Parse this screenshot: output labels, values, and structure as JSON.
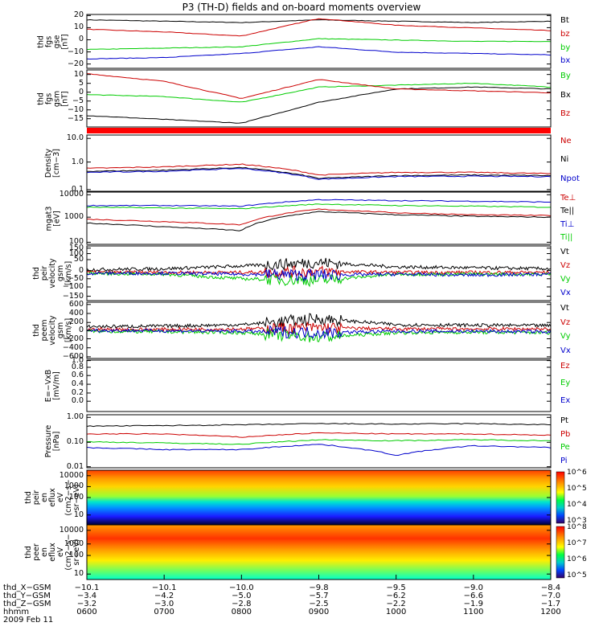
{
  "title": "P3 (TH-D) fields and on-board moments overview",
  "panels": [
    {
      "id": "fgs_gse",
      "ylabel": [
        "thd",
        "fgs",
        "gse",
        "[nT]"
      ],
      "ticks": [
        {
          "v": "20",
          "f": 0.02
        },
        {
          "v": "10",
          "f": 0.245
        },
        {
          "v": "0",
          "f": 0.47
        },
        {
          "v": "−10",
          "f": 0.695
        },
        {
          "v": "−20",
          "f": 0.92
        }
      ],
      "legend": [
        {
          "t": "Bt",
          "c": "#000000"
        },
        {
          "t": "bz",
          "c": "#cc0000"
        },
        {
          "t": "by",
          "c": "#00cc00"
        },
        {
          "t": "bx",
          "c": "#0000cc"
        }
      ]
    },
    {
      "id": "fgs_gsm",
      "ylabel": [
        "thd",
        "fgs",
        "gsm",
        "[nT]"
      ],
      "ticks": [
        {
          "v": "10",
          "f": 0.08
        },
        {
          "v": "5",
          "f": 0.235
        },
        {
          "v": "0",
          "f": 0.39
        },
        {
          "v": "−5",
          "f": 0.545
        },
        {
          "v": "−10",
          "f": 0.7
        },
        {
          "v": "−15",
          "f": 0.855
        }
      ],
      "legend": [
        {
          "t": "By",
          "c": "#00cc00"
        },
        {
          "t": "Bx",
          "c": "#000000"
        },
        {
          "t": "Bz",
          "c": "#cc0000"
        }
      ]
    },
    {
      "id": "density",
      "ylabel": [
        "Density",
        "[cm−3]"
      ],
      "ticks": [
        {
          "v": "10.0",
          "f": 0.06
        },
        {
          "v": "1.0",
          "f": 0.48
        },
        {
          "v": "0.1",
          "f": 0.97
        }
      ],
      "legend": [
        {
          "t": "Ne",
          "c": "#cc0000"
        },
        {
          "t": "Ni",
          "c": "#000000"
        },
        {
          "t": "Npot",
          "c": "#0000cc"
        }
      ]
    },
    {
      "id": "temperature",
      "ylabel": [
        "mgat3",
        "[eV]"
      ],
      "ticks": [
        {
          "v": "10000",
          "f": 0.05
        },
        {
          "v": "1000",
          "f": 0.48
        },
        {
          "v": "100",
          "f": 0.96
        }
      ],
      "legend": [
        {
          "t": "Te⊥",
          "c": "#cc0000"
        },
        {
          "t": "Te||",
          "c": "#000000"
        },
        {
          "t": "Ti⊥",
          "c": "#0000cc"
        },
        {
          "t": "Ti||",
          "c": "#00cc00"
        }
      ]
    },
    {
      "id": "peir_vel",
      "ylabel": [
        "thd",
        "peir",
        "velocity",
        "gsm",
        "[km/s]"
      ],
      "ticks": [
        {
          "v": "150",
          "f": 0.04
        },
        {
          "v": "100",
          "f": 0.14
        },
        {
          "v": "50",
          "f": 0.25
        },
        {
          "v": "0",
          "f": 0.45
        },
        {
          "v": "−50",
          "f": 0.6
        },
        {
          "v": "−100",
          "f": 0.75
        },
        {
          "v": "−150",
          "f": 0.92
        }
      ],
      "legend": [
        {
          "t": "Vt",
          "c": "#000000"
        },
        {
          "t": "Vz",
          "c": "#cc0000"
        },
        {
          "t": "Vy",
          "c": "#00cc00"
        },
        {
          "t": "Vx",
          "c": "#0000cc"
        }
      ]
    },
    {
      "id": "peem_vel",
      "ylabel": [
        "thd",
        "peem",
        "velocity",
        "gsm",
        "[km/s]"
      ],
      "ticks": [
        {
          "v": "600",
          "f": 0.04
        },
        {
          "v": "400",
          "f": 0.2
        },
        {
          "v": "200",
          "f": 0.36
        },
        {
          "v": "0",
          "f": 0.5
        },
        {
          "v": "−200",
          "f": 0.65
        },
        {
          "v": "−400",
          "f": 0.81
        },
        {
          "v": "−600",
          "f": 0.97
        }
      ],
      "legend": [
        {
          "t": "Vt",
          "c": "#000000"
        },
        {
          "t": "Vz",
          "c": "#cc0000"
        },
        {
          "t": "Vy",
          "c": "#00cc00"
        },
        {
          "t": "Vx",
          "c": "#0000cc"
        }
      ]
    },
    {
      "id": "efield",
      "ylabel": [
        "E=−VxB",
        "[mV/m]"
      ],
      "ticks": [
        {
          "v": "1.0",
          "f": 0.01
        },
        {
          "v": "0.8",
          "f": 0.14
        },
        {
          "v": "0.6",
          "f": 0.3
        },
        {
          "v": "0.4",
          "f": 0.47
        },
        {
          "v": "0.2",
          "f": 0.64
        },
        {
          "v": "0.0",
          "f": 0.8
        }
      ],
      "legend": [
        {
          "t": "Ez",
          "c": "#cc0000"
        },
        {
          "t": "Ey",
          "c": "#00cc00"
        },
        {
          "t": "Ex",
          "c": "#0000cc"
        }
      ]
    },
    {
      "id": "pressure",
      "ylabel": [
        "Pressure",
        "[nPa]"
      ],
      "ticks": [
        {
          "v": "1.00",
          "f": 0.05
        },
        {
          "v": "0.10",
          "f": 0.52
        },
        {
          "v": "0.01",
          "f": 0.98
        }
      ],
      "legend": [
        {
          "t": "Pt",
          "c": "#000000"
        },
        {
          "t": "Pb",
          "c": "#cc0000"
        },
        {
          "t": "Pe",
          "c": "#00cc00"
        },
        {
          "t": "Pi",
          "c": "#0000cc"
        }
      ]
    },
    {
      "id": "peir_eflux",
      "ylabel": [
        "thd",
        "peir",
        "en",
        "eflux",
        "eV",
        "(cm2−s−",
        "sr−eV)"
      ],
      "ticks": [
        {
          "v": "10000",
          "f": 0.1
        },
        {
          "v": "1000",
          "f": 0.3
        },
        {
          "v": "100",
          "f": 0.5
        },
        {
          "v": "10",
          "f": 0.82
        }
      ],
      "colorbar": [
        "10^6",
        "10^5",
        "10^4",
        "10^3"
      ]
    },
    {
      "id": "peer_eflux",
      "ylabel": [
        "thd",
        "peer",
        "en",
        "eflux",
        "eV",
        "(cm2−s−",
        "sr−eV)"
      ],
      "ticks": [
        {
          "v": "10000",
          "f": 0.1
        },
        {
          "v": "1000",
          "f": 0.35
        },
        {
          "v": "100",
          "f": 0.56
        },
        {
          "v": "10",
          "f": 0.9
        }
      ],
      "colorbar": [
        "10^8",
        "10^7",
        "10^6",
        "10^5"
      ]
    }
  ],
  "xaxis": {
    "rows": [
      {
        "label": "thd_X−GSM",
        "values": [
          "−10.1",
          "−10.1",
          "−10.0",
          "−9.8",
          "−9.5",
          "−9.0",
          "−8.4"
        ]
      },
      {
        "label": "thd_Y−GSM",
        "values": [
          "−3.4",
          "−4.2",
          "−5.0",
          "−5.7",
          "−6.2",
          "−6.6",
          "−7.0"
        ]
      },
      {
        "label": "thd_Z−GSM",
        "values": [
          "−3.2",
          "−3.0",
          "−2.8",
          "−2.5",
          "−2.2",
          "−1.9",
          "−1.7"
        ]
      },
      {
        "label": "hhmm",
        "values": [
          "0600",
          "0700",
          "0800",
          "0900",
          "1000",
          "1100",
          "1200"
        ]
      }
    ],
    "date": "2009 Feb 11"
  },
  "chart_data": {
    "type": "line",
    "title": "P3 (TH-D) fields and on-board moments overview",
    "x_time_hhmm": [
      "0600",
      "0700",
      "0800",
      "0900",
      "1000",
      "1100",
      "1200"
    ],
    "panels": [
      {
        "name": "thd fgs gse [nT]",
        "ylim": [
          -20,
          20
        ],
        "series": [
          {
            "name": "Bt",
            "values": [
              16,
              15,
              14,
              16,
              15,
              14,
              15
            ]
          },
          {
            "name": "bz",
            "values": [
              9,
              7,
              4,
              17,
              12,
              10,
              8
            ]
          },
          {
            "name": "by",
            "values": [
              -6,
              -5,
              -4,
              2,
              1,
              0,
              0
            ]
          },
          {
            "name": "bx",
            "values": [
              -13,
              -12,
              -9,
              -4,
              -8,
              -9,
              -10
            ]
          }
        ]
      },
      {
        "name": "thd fgs gsm [nT]",
        "ylim": [
          -18,
          12
        ],
        "series": [
          {
            "name": "By",
            "values": [
              -1,
              -2,
              -5,
              3,
              4,
              5,
              3
            ]
          },
          {
            "name": "Bx",
            "values": [
              -12,
              -14,
              -16,
              -5,
              2,
              3,
              2
            ]
          },
          {
            "name": "Bz",
            "values": [
              10,
              6,
              -3,
              7,
              2,
              1,
              0
            ]
          }
        ]
      },
      {
        "name": "Density [cm-3]",
        "scale": "log",
        "ylim": [
          0.1,
          12
        ],
        "series": [
          {
            "name": "Ne",
            "values": [
              0.7,
              0.8,
              1.0,
              0.4,
              0.5,
              0.5,
              0.45
            ]
          },
          {
            "name": "Ni",
            "values": [
              0.55,
              0.6,
              0.75,
              0.3,
              0.38,
              0.4,
              0.38
            ]
          },
          {
            "name": "Npot",
            "values": [
              0.5,
              0.55,
              0.7,
              0.28,
              0.35,
              0.36,
              0.35
            ]
          }
        ]
      },
      {
        "name": "mgat3 [eV]",
        "scale": "log",
        "ylim": [
          100,
          12000
        ],
        "series": [
          {
            "name": "Te⊥",
            "values": [
              1000,
              800,
              600,
              2500,
              1800,
              1500,
              1400
            ]
          },
          {
            "name": "Te||",
            "values": [
              700,
              500,
              350,
              2000,
              1500,
              1300,
              1200
            ]
          },
          {
            "name": "Ti⊥",
            "values": [
              3500,
              3500,
              3300,
              6000,
              5500,
              5200,
              4800
            ]
          },
          {
            "name": "Ti||",
            "values": [
              3000,
              2800,
              2600,
              4000,
              3500,
              3300,
              3000
            ]
          }
        ]
      },
      {
        "name": "thd peir velocity gsm [km/s]",
        "ylim": [
          -150,
          150
        ],
        "series": [
          {
            "name": "Vt",
            "values": [
              20,
              25,
              40,
              60,
              35,
              30,
              25
            ]
          },
          {
            "name": "Vz",
            "values": [
              5,
              5,
              5,
              10,
              5,
              5,
              5
            ]
          },
          {
            "name": "Vy",
            "values": [
              0,
              -5,
              -30,
              -40,
              -5,
              -5,
              -5
            ]
          },
          {
            "name": "Vx",
            "values": [
              0,
              0,
              -5,
              -10,
              -5,
              -10,
              -5
            ]
          }
        ]
      },
      {
        "name": "thd peem velocity gsm [km/s]",
        "ylim": [
          -600,
          600
        ],
        "series": [
          {
            "name": "Vt",
            "values": [
              80,
              90,
              120,
              250,
              120,
              110,
              100
            ]
          },
          {
            "name": "Vz",
            "values": [
              20,
              20,
              30,
              60,
              30,
              30,
              30
            ]
          },
          {
            "name": "Vy",
            "values": [
              -20,
              -30,
              -50,
              -150,
              -50,
              -40,
              -50
            ]
          },
          {
            "name": "Vx",
            "values": [
              0,
              -10,
              -20,
              -50,
              -20,
              -20,
              -30
            ]
          }
        ]
      },
      {
        "name": "E=-VxB [mV/m]",
        "ylim": [
          0,
          1
        ],
        "series": []
      },
      {
        "name": "Pressure [nPa]",
        "scale": "log",
        "ylim": [
          0.01,
          1.1
        ],
        "series": [
          {
            "name": "Pt",
            "values": [
              0.4,
              0.42,
              0.45,
              0.5,
              0.48,
              0.5,
              0.45
            ]
          },
          {
            "name": "Pb",
            "values": [
              0.2,
              0.2,
              0.15,
              0.22,
              0.2,
              0.2,
              0.18
            ]
          },
          {
            "name": "Pe",
            "values": [
              0.1,
              0.09,
              0.08,
              0.12,
              0.11,
              0.12,
              0.11
            ]
          },
          {
            "name": "Pi",
            "values": [
              0.06,
              0.05,
              0.05,
              0.08,
              0.03,
              0.07,
              0.06
            ]
          }
        ]
      }
    ]
  }
}
